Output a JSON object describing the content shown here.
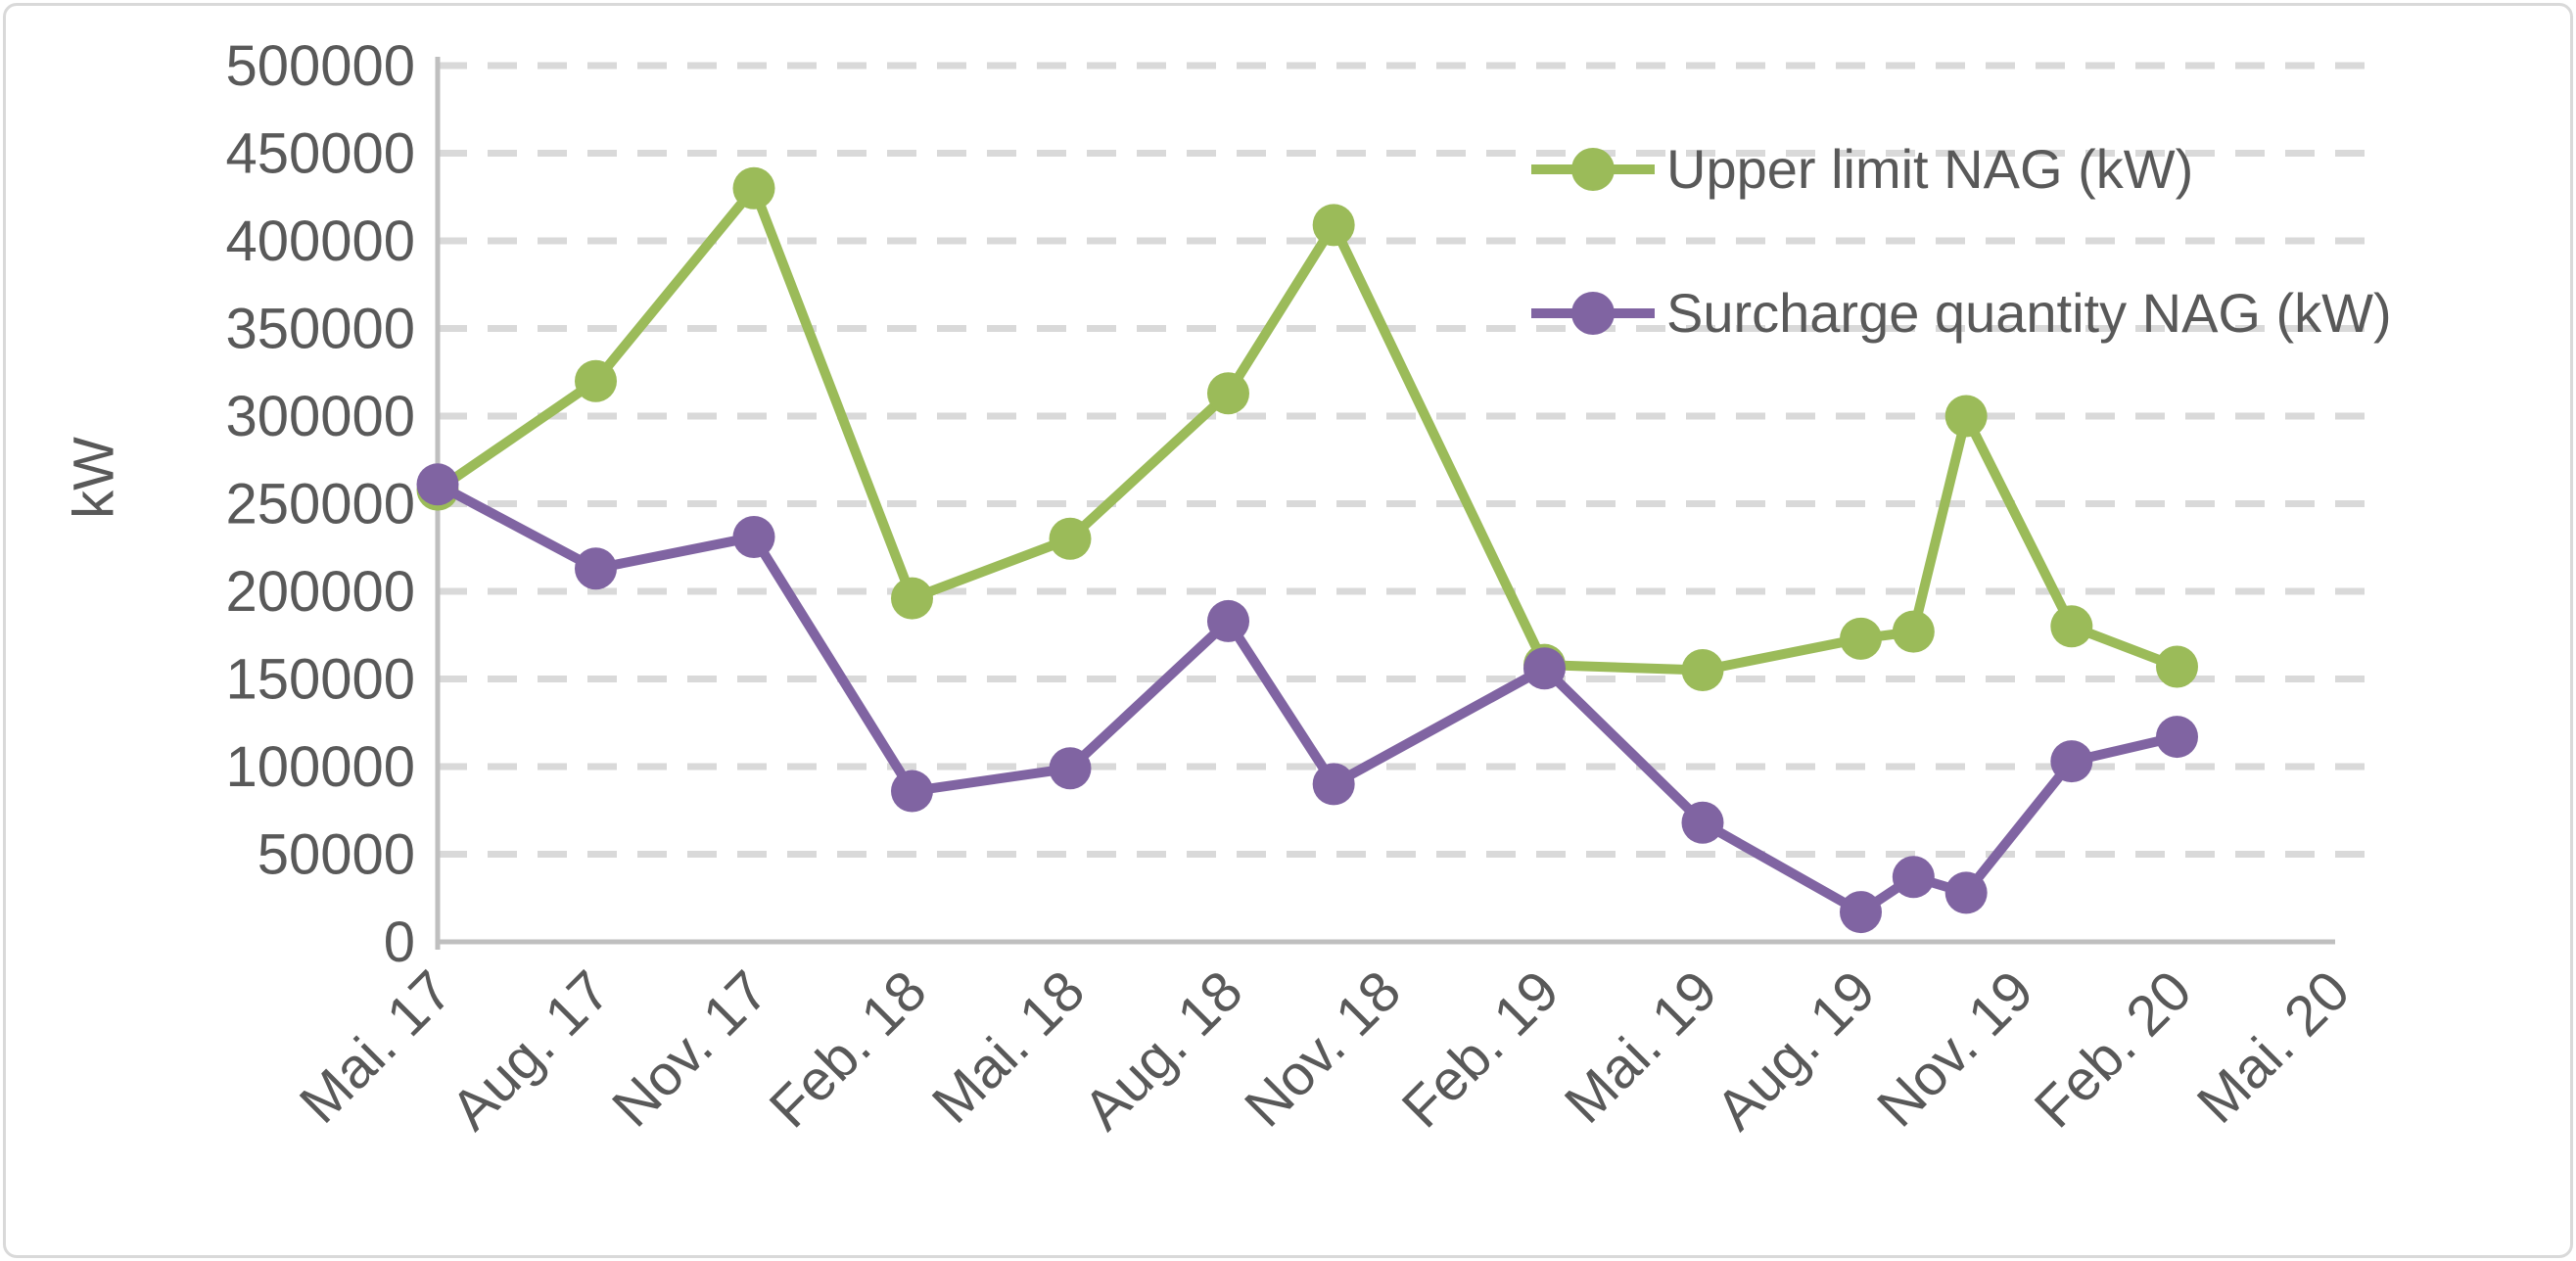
{
  "chart_data": {
    "type": "line",
    "title": "",
    "xlabel": "",
    "ylabel": "kW",
    "ylim": [
      0,
      500000
    ],
    "ytick_step": 50000,
    "grid": "horizontal-dashed",
    "legend_position": "top-right",
    "y_tick_labels": [
      "0",
      "50000",
      "100000",
      "150000",
      "200000",
      "250000",
      "300000",
      "350000",
      "400000",
      "450000",
      "500000"
    ],
    "x_tick_labels": [
      "Mai. 17",
      "Aug. 17",
      "Nov. 17",
      "Feb. 18",
      "Mai. 18",
      "Aug. 18",
      "Nov. 18",
      "Feb. 19",
      "Mai. 19",
      "Aug. 19",
      "Nov. 19",
      "Feb. 20",
      "Mai. 20"
    ],
    "x_tick_months": [
      0,
      3,
      6,
      9,
      12,
      15,
      18,
      21,
      24,
      27,
      30,
      33,
      36
    ],
    "x_axis_note": "months measured from Mai 2017; series sampled irregularly",
    "colors": {
      "gridline": "#d9d9d9",
      "axis_line": "#bfbfbf",
      "tick_text": "#595959",
      "border": "#d9d9d9"
    },
    "series": [
      {
        "name": "Upper limit NAG (kW)",
        "color": "#9bbb59",
        "points": [
          {
            "date": "Mai 17",
            "month": 0,
            "value": 258000
          },
          {
            "date": "Aug 17",
            "month": 3,
            "value": 320000
          },
          {
            "date": "Nov 17",
            "month": 6,
            "value": 430000
          },
          {
            "date": "Feb 18",
            "month": 9,
            "value": 196000
          },
          {
            "date": "Mai 18",
            "month": 12,
            "value": 230000
          },
          {
            "date": "Aug 18",
            "month": 15,
            "value": 313000
          },
          {
            "date": "Okt 18",
            "month": 17,
            "value": 409000
          },
          {
            "date": "Feb 19",
            "month": 21,
            "value": 158000
          },
          {
            "date": "Mai 19",
            "month": 24,
            "value": 155000
          },
          {
            "date": "Aug 19",
            "month": 27,
            "value": 173000
          },
          {
            "date": "Sep 19",
            "month": 28,
            "value": 177000
          },
          {
            "date": "Okt 19",
            "month": 29,
            "value": 300000
          },
          {
            "date": "Dez 19",
            "month": 31,
            "value": 180000
          },
          {
            "date": "Feb 20",
            "month": 33,
            "value": 157000
          }
        ]
      },
      {
        "name": "Surcharge quantity NAG (kW)",
        "color": "#8064a2",
        "points": [
          {
            "date": "Mai 17",
            "month": 0,
            "value": 261000
          },
          {
            "date": "Aug 17",
            "month": 3,
            "value": 213000
          },
          {
            "date": "Nov 17",
            "month": 6,
            "value": 231000
          },
          {
            "date": "Feb 18",
            "month": 9,
            "value": 86000
          },
          {
            "date": "Mai 18",
            "month": 12,
            "value": 99000
          },
          {
            "date": "Aug 18",
            "month": 15,
            "value": 183000
          },
          {
            "date": "Okt 18",
            "month": 17,
            "value": 90000
          },
          {
            "date": "Feb 19",
            "month": 21,
            "value": 156000
          },
          {
            "date": "Mai 19",
            "month": 24,
            "value": 68000
          },
          {
            "date": "Aug 19",
            "month": 27,
            "value": 17000
          },
          {
            "date": "Sep 19",
            "month": 28,
            "value": 37000
          },
          {
            "date": "Okt 19",
            "month": 29,
            "value": 28000
          },
          {
            "date": "Dez 19",
            "month": 31,
            "value": 103000
          },
          {
            "date": "Feb 20",
            "month": 33,
            "value": 117000
          }
        ]
      }
    ]
  }
}
